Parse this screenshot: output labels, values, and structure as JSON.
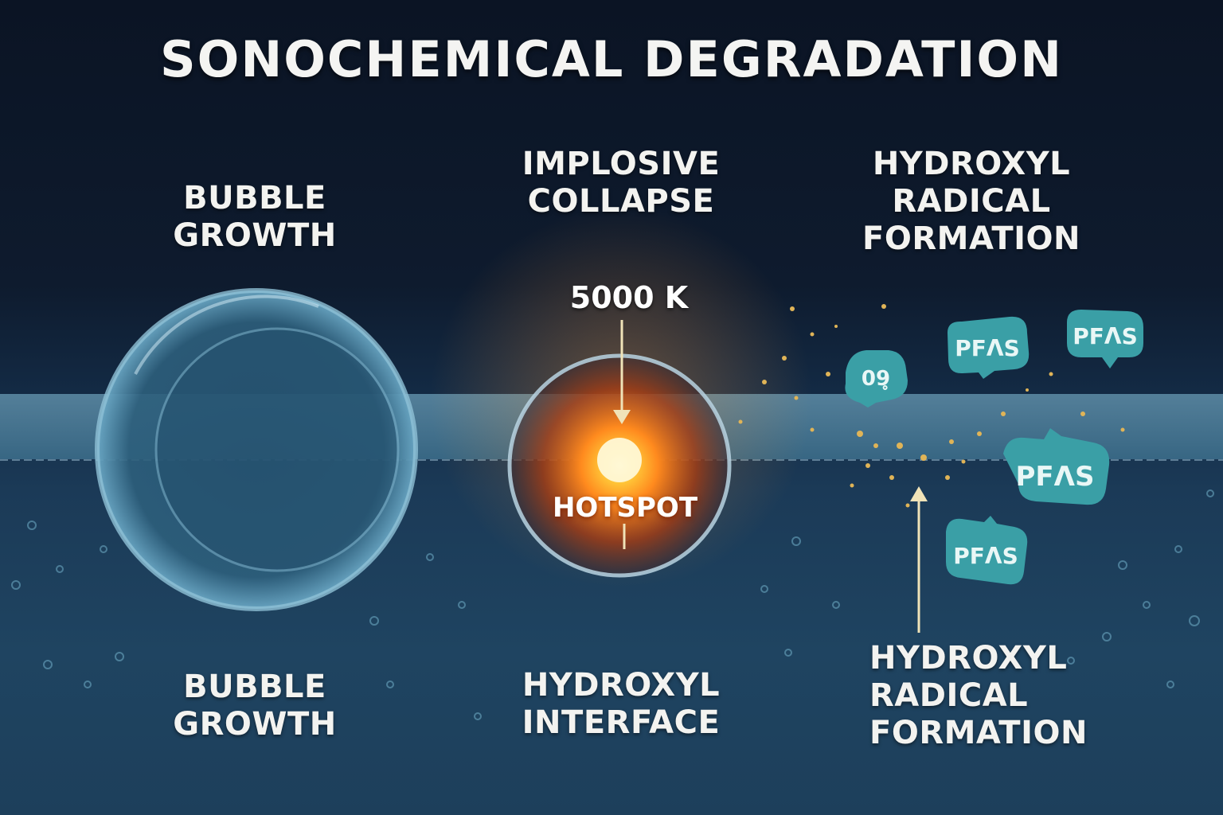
{
  "title": "SONOCHEMICAL DEGRADATION",
  "labels": {
    "top_left": [
      "BUBBLE",
      "GROWTH"
    ],
    "top_center": [
      "IMPLOSIVE",
      "COLLAPSE"
    ],
    "top_right": [
      "HYDROXYL",
      "RADICAL",
      "FORMATION"
    ],
    "bottom_left": [
      "BUBBLE",
      "GROWTH"
    ],
    "bottom_center": [
      "HYDROXYL",
      "INTERFACE"
    ],
    "bottom_right": [
      "HYDROXYL",
      "RADICAL",
      "FORMATION"
    ]
  },
  "temperature": "5000 K",
  "hotspot": "HOTSPOT",
  "molecules": [
    "PFΛS",
    "PFΛS",
    "PFΛS",
    "PFΛS",
    "09̥"
  ],
  "colors": {
    "background_top": "#0b1424",
    "water": "#1f4461",
    "molecule": "#3a9fa6",
    "hotspot": "#ff8a1e",
    "arrow": "#f0e3b8"
  }
}
